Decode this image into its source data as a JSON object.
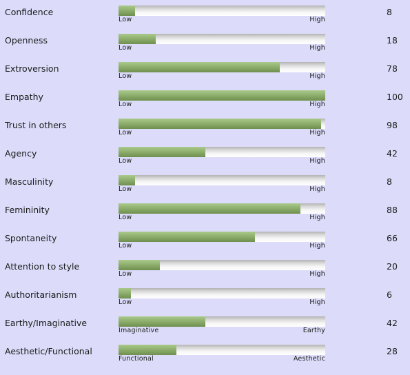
{
  "traits": [
    {
      "label": "Confidence",
      "value": 8,
      "low": "Low",
      "high": "High"
    },
    {
      "label": "Openness",
      "value": 18,
      "low": "Low",
      "high": "High"
    },
    {
      "label": "Extroversion",
      "value": 78,
      "low": "Low",
      "high": "High"
    },
    {
      "label": "Empathy",
      "value": 100,
      "low": "Low",
      "high": "High"
    },
    {
      "label": "Trust in others",
      "value": 98,
      "low": "Low",
      "high": "High"
    },
    {
      "label": "Agency",
      "value": 42,
      "low": "Low",
      "high": "High"
    },
    {
      "label": "Masculinity",
      "value": 8,
      "low": "Low",
      "high": "High"
    },
    {
      "label": "Femininity",
      "value": 88,
      "low": "Low",
      "high": "High"
    },
    {
      "label": "Spontaneity",
      "value": 66,
      "low": "Low",
      "high": "High"
    },
    {
      "label": "Attention to style",
      "value": 20,
      "low": "Low",
      "high": "High"
    },
    {
      "label": "Authoritarianism",
      "value": 6,
      "low": "Low",
      "high": "High"
    },
    {
      "label": "Earthy/Imaginative",
      "value": 42,
      "low": "Imaginative",
      "high": "Earthy"
    },
    {
      "label": "Aesthetic/Functional",
      "value": 28,
      "low": "Functional",
      "high": "Aesthetic"
    }
  ],
  "colors": {
    "background": "#dcdcfa",
    "bar_fill": "#8fb06e",
    "bar_track": "#f6f6f6"
  }
}
